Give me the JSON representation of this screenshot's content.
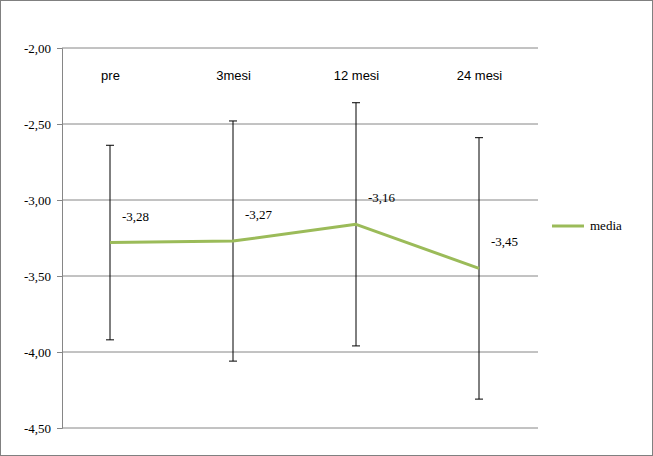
{
  "chart_data": {
    "type": "line",
    "categories": [
      "pre",
      "3mesi",
      "12 mesi",
      "24 mesi"
    ],
    "series": [
      {
        "name": "media",
        "color": "#9bbb59",
        "values": [
          -3.28,
          -3.27,
          -3.16,
          -3.45
        ],
        "value_labels": [
          "-3,28",
          "-3,27",
          "-3,16",
          "-3,45"
        ],
        "errors": [
          0.64,
          0.79,
          0.8,
          0.86
        ]
      }
    ],
    "ylim": [
      -4.5,
      -2.0
    ],
    "yticks": [
      {
        "value": -4.5,
        "label": "-4,50"
      },
      {
        "value": -4.0,
        "label": "-4,00"
      },
      {
        "value": -3.5,
        "label": "-3,50"
      },
      {
        "value": -3.0,
        "label": "-3,00"
      },
      {
        "value": -2.5,
        "label": "-2,50"
      },
      {
        "value": -2.0,
        "label": "-2,00"
      }
    ],
    "grid": true,
    "legend": "right",
    "data_labels": true
  }
}
